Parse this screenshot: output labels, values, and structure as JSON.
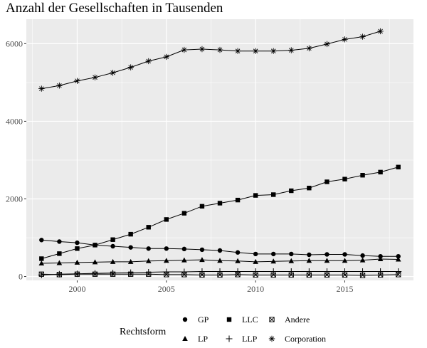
{
  "chart_data": {
    "type": "line",
    "title": "Anzahl der Gesellschaften in Tausenden",
    "xlabel": "",
    "ylabel": "",
    "xlim": [
      1997.15,
      2018.85
    ],
    "ylim": [
      -100,
      6630
    ],
    "x_ticks": [
      2000,
      2005,
      2010,
      2015
    ],
    "y_ticks": [
      0,
      2000,
      4000,
      6000
    ],
    "grid": true,
    "legend_title": "Rechtsform",
    "legend_position": "bottom",
    "series": [
      {
        "name": "GP",
        "marker": "circle",
        "x": [
          1998,
          1999,
          2000,
          2001,
          2002,
          2003,
          2004,
          2005,
          2006,
          2007,
          2008,
          2009,
          2010,
          2011,
          2012,
          2013,
          2014,
          2015,
          2016,
          2017,
          2018
        ],
        "y": [
          940,
          900,
          870,
          810,
          780,
          750,
          720,
          720,
          710,
          690,
          670,
          620,
          580,
          580,
          580,
          560,
          570,
          570,
          540,
          520,
          520
        ]
      },
      {
        "name": "LLC",
        "marker": "square",
        "x": [
          1998,
          1999,
          2000,
          2001,
          2002,
          2003,
          2004,
          2005,
          2006,
          2007,
          2008,
          2009,
          2010,
          2011,
          2012,
          2013,
          2014,
          2015,
          2016,
          2017,
          2018
        ],
        "y": [
          460,
          590,
          720,
          810,
          950,
          1090,
          1270,
          1470,
          1630,
          1810,
          1890,
          1970,
          2090,
          2110,
          2210,
          2280,
          2440,
          2510,
          2610,
          2690,
          2820
        ]
      },
      {
        "name": "Andere",
        "marker": "boxx",
        "x": [
          1998,
          1999,
          2000,
          2001,
          2002,
          2003,
          2004,
          2005,
          2006,
          2007,
          2008,
          2009,
          2010,
          2011,
          2012,
          2013,
          2014,
          2015,
          2016,
          2017,
          2018
        ],
        "y": [
          60,
          50,
          60,
          60,
          60,
          60,
          60,
          50,
          50,
          40,
          40,
          50,
          40,
          40,
          40,
          40,
          40,
          40,
          30,
          40,
          50
        ]
      },
      {
        "name": "LP",
        "marker": "triangle",
        "x": [
          1998,
          1999,
          2000,
          2001,
          2002,
          2003,
          2004,
          2005,
          2006,
          2007,
          2008,
          2009,
          2010,
          2011,
          2012,
          2013,
          2014,
          2015,
          2016,
          2017,
          2018
        ],
        "y": [
          340,
          350,
          360,
          370,
          380,
          380,
          400,
          410,
          420,
          430,
          410,
          400,
          380,
          390,
          400,
          410,
          410,
          410,
          420,
          450,
          440
        ]
      },
      {
        "name": "LLP",
        "marker": "plus",
        "x": [
          1998,
          1999,
          2000,
          2001,
          2002,
          2003,
          2004,
          2005,
          2006,
          2007,
          2008,
          2009,
          2010,
          2011,
          2012,
          2013,
          2014,
          2015,
          2016,
          2017,
          2018
        ],
        "y": [
          40,
          60,
          70,
          80,
          90,
          100,
          110,
          120,
          120,
          130,
          130,
          130,
          130,
          130,
          130,
          130,
          130,
          130,
          130,
          130,
          130
        ]
      },
      {
        "name": "Corporation",
        "marker": "star",
        "x": [
          1998,
          1999,
          2000,
          2001,
          2002,
          2003,
          2004,
          2005,
          2006,
          2007,
          2008,
          2009,
          2010,
          2011,
          2012,
          2013,
          2014,
          2015,
          2016,
          2017
        ],
        "y": [
          4840,
          4920,
          5040,
          5130,
          5250,
          5390,
          5550,
          5660,
          5840,
          5860,
          5840,
          5810,
          5810,
          5810,
          5830,
          5880,
          5990,
          6110,
          6180,
          6320
        ]
      }
    ],
    "colors": {
      "panel": "#ebebeb",
      "grid": "#ffffff",
      "line": "#000000",
      "tick_text": "#4d4d4d"
    }
  }
}
